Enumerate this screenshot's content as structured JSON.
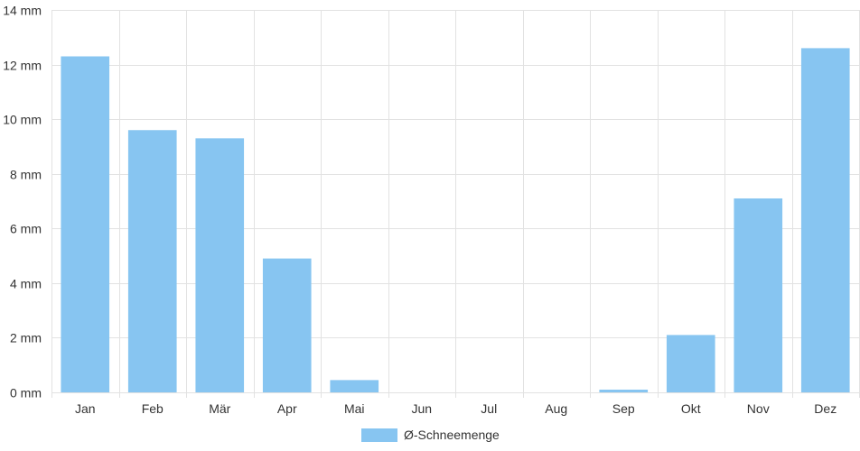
{
  "chart_data": {
    "type": "bar",
    "categories": [
      "Jan",
      "Feb",
      "Mär",
      "Apr",
      "Mai",
      "Jun",
      "Jul",
      "Aug",
      "Sep",
      "Okt",
      "Nov",
      "Dez"
    ],
    "series": [
      {
        "name": "Ø-Schneemenge",
        "values": [
          12.3,
          9.6,
          9.3,
          4.9,
          0.45,
          0,
          0,
          0,
          0.1,
          2.1,
          7.1,
          12.6
        ],
        "color": "#87c5f1"
      }
    ],
    "y_ticks": [
      {
        "value": 0,
        "label": "0 mm"
      },
      {
        "value": 2,
        "label": "2 mm"
      },
      {
        "value": 4,
        "label": "4 mm"
      },
      {
        "value": 6,
        "label": "6 mm"
      },
      {
        "value": 8,
        "label": "8 mm"
      },
      {
        "value": 10,
        "label": "10 mm"
      },
      {
        "value": 12,
        "label": "12 mm"
      },
      {
        "value": 14,
        "label": "14 mm"
      }
    ],
    "ylim": [
      0,
      14
    ],
    "grid": true,
    "legend_position": "bottom-center",
    "title": "",
    "xlabel": "",
    "ylabel": ""
  },
  "colors": {
    "bar": "#87c5f1",
    "grid": "#e2e2e2",
    "text": "#333333"
  }
}
